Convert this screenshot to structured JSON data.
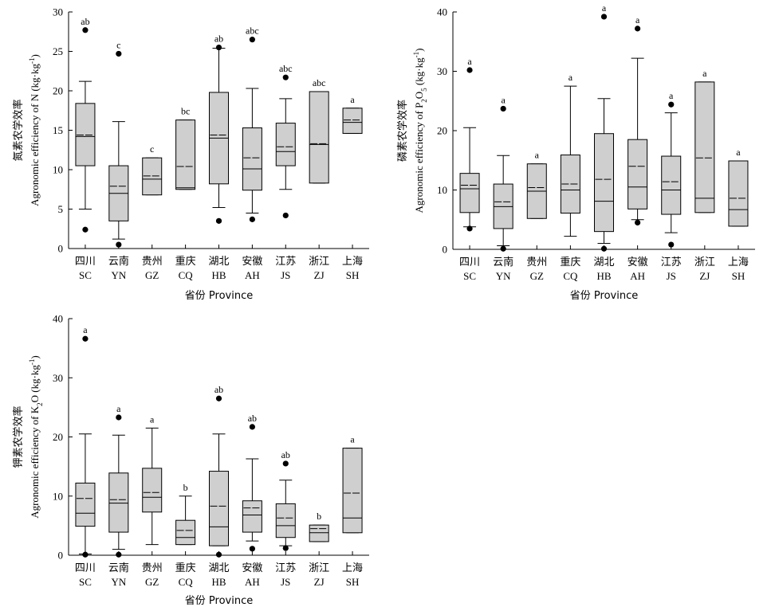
{
  "chart_data": [
    {
      "type": "box",
      "ylabel_cn": "氮素农学效率",
      "ylabel_en": "Agronomic efficiency of N (kg·kg",
      "ylabel_unit_sup": "-1",
      "ylabel_close": ")",
      "xlabel": "省份 Province",
      "ylim": [
        0,
        30
      ],
      "yticks": [
        0,
        5,
        10,
        15,
        20,
        25,
        30
      ],
      "categories_cn": [
        "四川",
        "云南",
        "贵州",
        "重庆",
        "湖北",
        "安徽",
        "江苏",
        "浙江",
        "上海"
      ],
      "categories_en": [
        "SC",
        "YN",
        "GZ",
        "CQ",
        "HB",
        "AH",
        "JS",
        "ZJ",
        "SH"
      ],
      "boxes": [
        {
          "wlo": 5.0,
          "q1": 10.5,
          "med": 14.2,
          "mean": 14.4,
          "q3": 18.4,
          "whi": 21.2,
          "outliers": [
            2.4,
            27.7
          ],
          "sig": "ab"
        },
        {
          "wlo": 1.2,
          "q1": 3.5,
          "med": 7.0,
          "mean": 7.9,
          "q3": 10.5,
          "whi": 16.1,
          "outliers": [
            0.5,
            24.7
          ],
          "sig": "c"
        },
        {
          "wlo": 6.8,
          "q1": 6.8,
          "med": 8.8,
          "mean": 9.2,
          "q3": 11.5,
          "whi": 11.5,
          "outliers": [],
          "sig": "c"
        },
        {
          "wlo": 7.5,
          "q1": 7.5,
          "med": 7.7,
          "mean": 10.4,
          "q3": 16.3,
          "whi": 16.3,
          "outliers": [],
          "sig": "bc"
        },
        {
          "wlo": 5.2,
          "q1": 8.2,
          "med": 14.0,
          "mean": 14.4,
          "q3": 19.8,
          "whi": 25.4,
          "outliers": [
            3.5,
            25.5
          ],
          "sig": "ab"
        },
        {
          "wlo": 4.5,
          "q1": 7.4,
          "med": 10.1,
          "mean": 11.5,
          "q3": 15.3,
          "whi": 20.3,
          "outliers": [
            3.7,
            26.5
          ],
          "sig": "abc"
        },
        {
          "wlo": 7.5,
          "q1": 10.5,
          "med": 12.3,
          "mean": 12.9,
          "q3": 15.9,
          "whi": 19.0,
          "outliers": [
            4.2,
            21.7
          ],
          "sig": "abc"
        },
        {
          "wlo": 8.3,
          "q1": 8.3,
          "med": 13.2,
          "mean": 13.3,
          "q3": 19.9,
          "whi": 19.9,
          "outliers": [],
          "sig": "abc"
        },
        {
          "wlo": 14.6,
          "q1": 14.6,
          "med": 16.0,
          "mean": 16.3,
          "q3": 17.8,
          "whi": 17.8,
          "outliers": [],
          "sig": "a"
        }
      ]
    },
    {
      "type": "box",
      "ylabel_cn": "磷素农学效率",
      "ylabel_en": "Agronomic efficiency of P",
      "ylabel_sub": "2",
      "ylabel_mid": "O",
      "ylabel_sub2": "5",
      "ylabel_tail": " (kg·kg",
      "ylabel_unit_sup": "-1",
      "ylabel_close": ")",
      "xlabel": "省份 Province",
      "ylim": [
        0,
        40
      ],
      "yticks": [
        0,
        10,
        20,
        30,
        40
      ],
      "categories_cn": [
        "四川",
        "云南",
        "贵州",
        "重庆",
        "湖北",
        "安徽",
        "江苏",
        "浙江",
        "上海"
      ],
      "categories_en": [
        "SC",
        "YN",
        "GZ",
        "CQ",
        "HB",
        "AH",
        "JS",
        "ZJ",
        "SH"
      ],
      "boxes": [
        {
          "wlo": 3.8,
          "q1": 6.2,
          "med": 10.2,
          "mean": 10.8,
          "q3": 12.8,
          "whi": 20.5,
          "outliers": [
            3.5,
            30.2
          ],
          "sig": "a"
        },
        {
          "wlo": 0.6,
          "q1": 3.5,
          "med": 7.2,
          "mean": 8.0,
          "q3": 11.0,
          "whi": 15.8,
          "outliers": [
            0.1,
            23.7
          ],
          "sig": "a"
        },
        {
          "wlo": 5.2,
          "q1": 5.2,
          "med": 9.8,
          "mean": 10.4,
          "q3": 14.4,
          "whi": 14.4,
          "outliers": [],
          "sig": "a"
        },
        {
          "wlo": 2.2,
          "q1": 6.1,
          "med": 10.0,
          "mean": 11.0,
          "q3": 15.9,
          "whi": 27.5,
          "outliers": [],
          "sig": "a"
        },
        {
          "wlo": 1.0,
          "q1": 3.0,
          "med": 8.1,
          "mean": 11.8,
          "q3": 19.5,
          "whi": 25.4,
          "outliers": [
            0.1,
            39.2
          ],
          "sig": "a"
        },
        {
          "wlo": 5.0,
          "q1": 6.8,
          "med": 10.5,
          "mean": 14.0,
          "q3": 18.5,
          "whi": 32.2,
          "outliers": [
            4.5,
            37.2
          ],
          "sig": "a"
        },
        {
          "wlo": 2.8,
          "q1": 5.9,
          "med": 10.0,
          "mean": 11.4,
          "q3": 15.7,
          "whi": 23.0,
          "outliers": [
            0.8,
            24.4
          ],
          "sig": "a"
        },
        {
          "wlo": 6.2,
          "q1": 6.2,
          "med": 8.6,
          "mean": 15.4,
          "q3": 28.2,
          "whi": 28.2,
          "outliers": [],
          "sig": "a"
        },
        {
          "wlo": 3.9,
          "q1": 3.9,
          "med": 6.7,
          "mean": 8.6,
          "q3": 14.9,
          "whi": 14.9,
          "outliers": [],
          "sig": "a"
        }
      ]
    },
    {
      "type": "box",
      "ylabel_cn": "钾素农学效率",
      "ylabel_en": "Agronomic efficiency of K",
      "ylabel_sub": "2",
      "ylabel_mid": "O",
      "ylabel_tail": " (kg·kg",
      "ylabel_unit_sup": "-1",
      "ylabel_close": ")",
      "xlabel": "省份 Province",
      "ylim": [
        0,
        40
      ],
      "yticks": [
        0,
        10,
        20,
        30,
        40
      ],
      "categories_cn": [
        "四川",
        "云南",
        "贵州",
        "重庆",
        "湖北",
        "安徽",
        "江苏",
        "浙江",
        "上海"
      ],
      "categories_en": [
        "SC",
        "YN",
        "GZ",
        "CQ",
        "HB",
        "AH",
        "JS",
        "ZJ",
        "SH"
      ],
      "boxes": [
        {
          "wlo": 0.2,
          "q1": 4.9,
          "med": 7.1,
          "mean": 9.6,
          "q3": 12.2,
          "whi": 20.5,
          "outliers": [
            0.1,
            36.6
          ],
          "sig": "a"
        },
        {
          "wlo": 1.0,
          "q1": 3.9,
          "med": 8.8,
          "mean": 9.4,
          "q3": 13.9,
          "whi": 20.3,
          "outliers": [
            0.1,
            23.3
          ],
          "sig": "a"
        },
        {
          "wlo": 1.8,
          "q1": 7.3,
          "med": 9.8,
          "mean": 10.6,
          "q3": 14.7,
          "whi": 21.5,
          "outliers": [],
          "sig": "a"
        },
        {
          "wlo": 1.8,
          "q1": 1.8,
          "med": 3.0,
          "mean": 4.2,
          "q3": 5.9,
          "whi": 10.0,
          "outliers": [],
          "sig": "b"
        },
        {
          "wlo": 1.6,
          "q1": 1.6,
          "med": 4.8,
          "mean": 8.3,
          "q3": 14.2,
          "whi": 20.5,
          "outliers": [
            0.1,
            26.5
          ],
          "sig": "ab"
        },
        {
          "wlo": 2.4,
          "q1": 3.9,
          "med": 6.8,
          "mean": 8.0,
          "q3": 9.2,
          "whi": 16.3,
          "outliers": [
            1.1,
            21.7
          ],
          "sig": "ab"
        },
        {
          "wlo": 1.6,
          "q1": 3.0,
          "med": 5.0,
          "mean": 6.3,
          "q3": 8.7,
          "whi": 12.7,
          "outliers": [
            1.2,
            15.5
          ],
          "sig": "ab"
        },
        {
          "wlo": 2.3,
          "q1": 2.3,
          "med": 3.8,
          "mean": 4.5,
          "q3": 5.1,
          "whi": 5.1,
          "outliers": [],
          "sig": "b"
        },
        {
          "wlo": 3.8,
          "q1": 3.8,
          "med": 6.3,
          "mean": 10.5,
          "q3": 18.1,
          "whi": 18.1,
          "outliers": [],
          "sig": "a"
        }
      ]
    }
  ]
}
